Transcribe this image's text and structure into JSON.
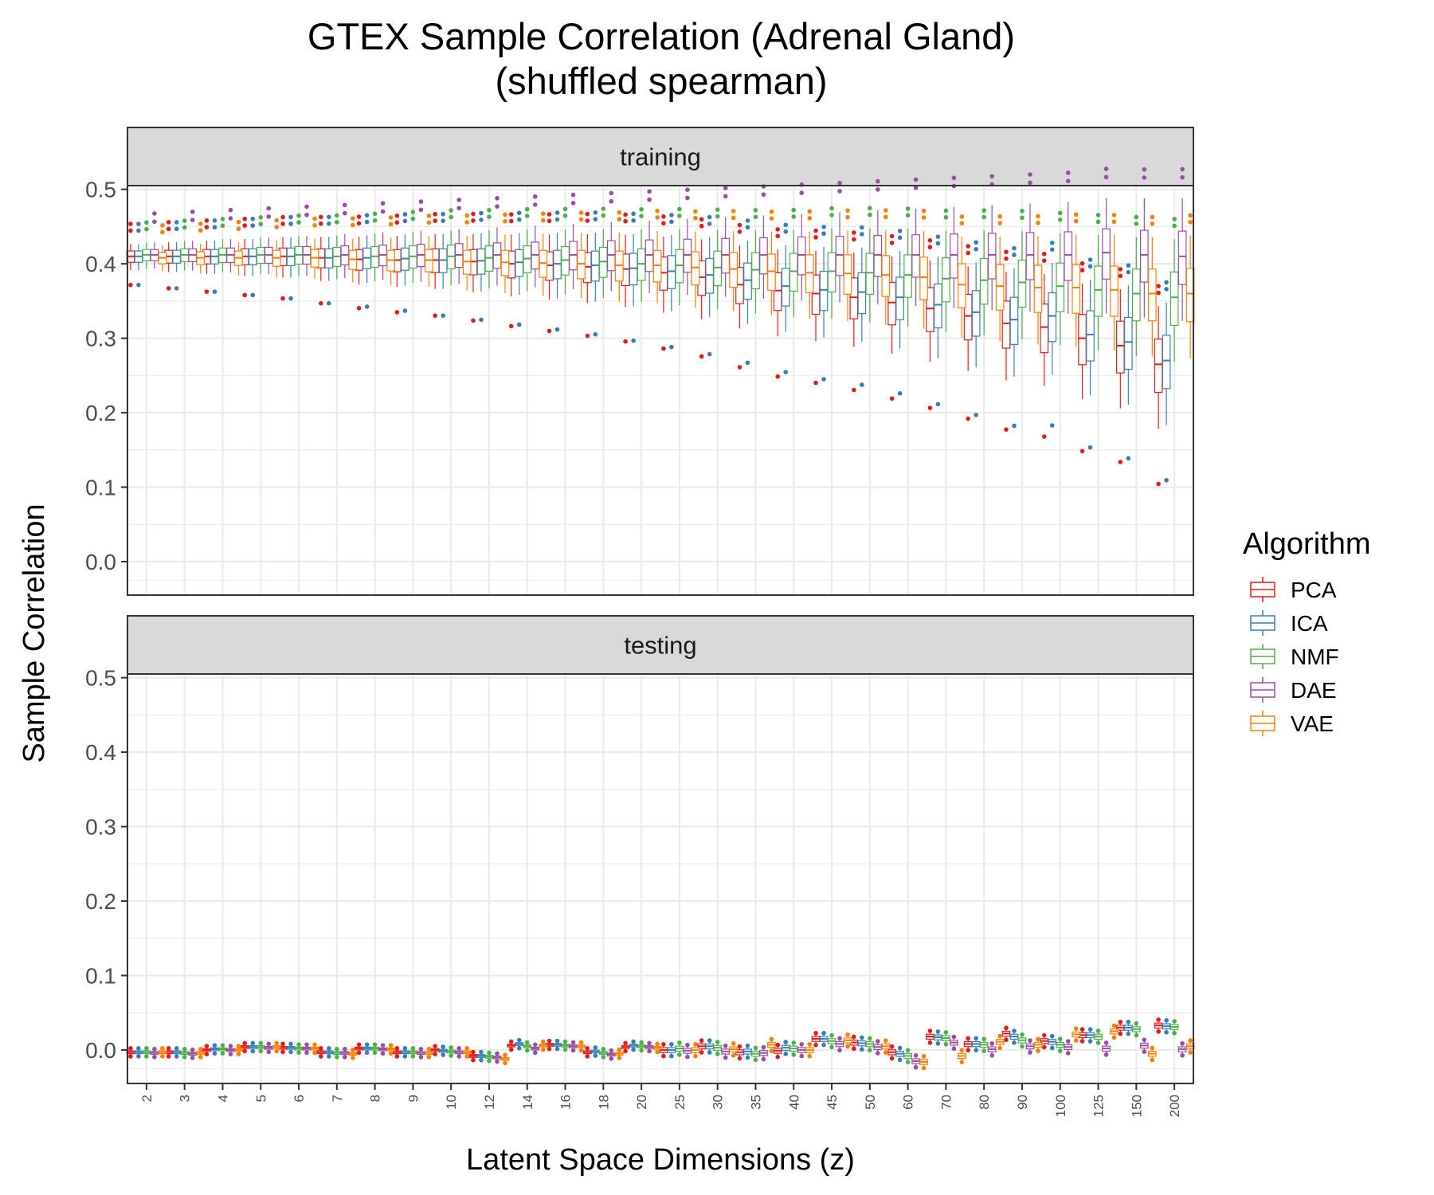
{
  "chart_data": {
    "type": "boxplot",
    "title": "GTEX Sample Correlation (Adrenal Gland)",
    "subtitle": "(shuffled spearman)",
    "xlabel": "Latent Space Dimensions (z)",
    "ylabel": "Sample Correlation",
    "ylim": [
      -0.045,
      0.505
    ],
    "yticks": [
      "0.0",
      "0.1",
      "0.2",
      "0.3",
      "0.4",
      "0.5"
    ],
    "grid": true,
    "legend_position": "right",
    "legend_title": "Algorithm",
    "categories": [
      "2",
      "3",
      "4",
      "5",
      "6",
      "7",
      "8",
      "9",
      "10",
      "12",
      "14",
      "16",
      "18",
      "20",
      "25",
      "30",
      "35",
      "40",
      "45",
      "50",
      "60",
      "70",
      "80",
      "90",
      "100",
      "125",
      "150",
      "200"
    ],
    "series": [
      {
        "name": "PCA",
        "color": "#E41A1C"
      },
      {
        "name": "ICA",
        "color": "#377EB8"
      },
      {
        "name": "NMF",
        "color": "#4DAF4A"
      },
      {
        "name": "DAE",
        "color": "#984EA3"
      },
      {
        "name": "VAE",
        "color": "#FF7F00"
      }
    ],
    "panels": [
      {
        "label": "training",
        "medians": {
          "PCA": [
            0.41,
            0.41,
            0.41,
            0.41,
            0.41,
            0.408,
            0.406,
            0.405,
            0.405,
            0.403,
            0.4,
            0.398,
            0.396,
            0.393,
            0.388,
            0.382,
            0.372,
            0.364,
            0.36,
            0.355,
            0.348,
            0.34,
            0.33,
            0.32,
            0.315,
            0.3,
            0.29,
            0.265
          ],
          "ICA": [
            0.41,
            0.41,
            0.41,
            0.41,
            0.41,
            0.408,
            0.408,
            0.407,
            0.405,
            0.404,
            0.402,
            0.4,
            0.398,
            0.394,
            0.39,
            0.385,
            0.378,
            0.37,
            0.365,
            0.362,
            0.355,
            0.345,
            0.335,
            0.325,
            0.33,
            0.305,
            0.295,
            0.27
          ],
          "NMF": [
            0.412,
            0.412,
            0.412,
            0.412,
            0.412,
            0.41,
            0.41,
            0.41,
            0.41,
            0.408,
            0.407,
            0.405,
            0.403,
            0.4,
            0.398,
            0.395,
            0.392,
            0.39,
            0.39,
            0.388,
            0.385,
            0.38,
            0.378,
            0.375,
            0.37,
            0.365,
            0.36,
            0.355
          ],
          "DAE": [
            0.412,
            0.412,
            0.412,
            0.412,
            0.412,
            0.412,
            0.412,
            0.412,
            0.412,
            0.412,
            0.412,
            0.412,
            0.412,
            0.412,
            0.412,
            0.412,
            0.412,
            0.412,
            0.412,
            0.412,
            0.412,
            0.412,
            0.412,
            0.412,
            0.412,
            0.415,
            0.412,
            0.41
          ],
          "VAE": [
            0.408,
            0.408,
            0.408,
            0.408,
            0.408,
            0.406,
            0.405,
            0.405,
            0.403,
            0.402,
            0.401,
            0.4,
            0.398,
            0.398,
            0.395,
            0.393,
            0.39,
            0.388,
            0.387,
            0.385,
            0.382,
            0.372,
            0.37,
            0.368,
            0.368,
            0.365,
            0.36,
            0.36
          ]
        }
      },
      {
        "label": "testing",
        "medians": {
          "PCA": [
            -0.003,
            -0.003,
            0.0,
            0.004,
            0.003,
            -0.003,
            0.002,
            -0.003,
            0.0,
            -0.008,
            0.006,
            0.007,
            -0.003,
            0.004,
            0.0,
            0.005,
            -0.003,
            -0.001,
            0.015,
            0.01,
            -0.003,
            0.018,
            0.008,
            0.022,
            0.012,
            0.02,
            0.03,
            0.033
          ],
          "ICA": [
            -0.003,
            -0.003,
            0.001,
            0.004,
            0.003,
            -0.003,
            0.002,
            -0.003,
            -0.001,
            -0.008,
            0.008,
            0.007,
            -0.002,
            0.006,
            0.0,
            0.005,
            -0.002,
            0.003,
            0.015,
            0.009,
            -0.005,
            0.017,
            0.008,
            0.018,
            0.011,
            0.02,
            0.03,
            0.032
          ],
          "NMF": [
            -0.003,
            -0.004,
            0.001,
            0.004,
            0.002,
            -0.004,
            0.002,
            -0.003,
            -0.002,
            -0.009,
            0.005,
            0.006,
            -0.004,
            0.005,
            0.002,
            0.003,
            -0.005,
            0.002,
            0.012,
            0.008,
            -0.008,
            0.016,
            0.007,
            0.013,
            0.007,
            0.018,
            0.028,
            0.031
          ],
          "DAE": [
            -0.004,
            -0.005,
            0.0,
            0.003,
            0.002,
            -0.004,
            0.001,
            -0.004,
            -0.003,
            -0.01,
            0.002,
            0.005,
            -0.006,
            0.004,
            -0.001,
            -0.002,
            -0.004,
            0.0,
            0.008,
            0.004,
            -0.015,
            0.01,
            0.001,
            0.005,
            0.004,
            0.002,
            0.006,
            0.001
          ],
          "VAE": [
            -0.003,
            -0.004,
            0.0,
            0.004,
            0.002,
            -0.005,
            0.001,
            -0.004,
            -0.003,
            -0.012,
            0.006,
            0.005,
            -0.005,
            0.003,
            0.0,
            0.001,
            0.007,
            0.0,
            0.013,
            0.005,
            -0.016,
            -0.008,
            0.011,
            0.007,
            0.021,
            0.025,
            -0.005,
            0.005
          ]
        }
      }
    ]
  }
}
